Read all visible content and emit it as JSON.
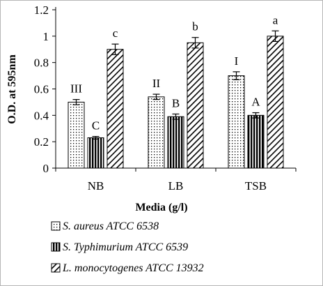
{
  "chart_data": {
    "type": "bar",
    "title": "",
    "xlabel": "Media (g/l)",
    "ylabel": "O.D. at 595nm",
    "ylim": [
      0,
      1.2
    ],
    "yticks": [
      "0",
      "0.2",
      "0.4",
      "0.6",
      "0.8",
      "1",
      "1.2"
    ],
    "categories": [
      "NB",
      "LB",
      "TSB"
    ],
    "series": [
      {
        "name": "S. aureus ATCC 6538",
        "pattern": "dots",
        "values": [
          0.5,
          0.54,
          0.7
        ],
        "errors": [
          0.02,
          0.02,
          0.03
        ],
        "labels": [
          "III",
          "II",
          "I"
        ]
      },
      {
        "name": "S. Typhimurium ATCC 6539",
        "pattern": "vertical-stripes",
        "values": [
          0.23,
          0.39,
          0.4
        ],
        "errors": [
          0.01,
          0.02,
          0.02
        ],
        "labels": [
          "C",
          "B",
          "A"
        ]
      },
      {
        "name": "L. monocytogenes ATCC 13932",
        "pattern": "diagonal-hatch",
        "values": [
          0.9,
          0.95,
          1.0
        ],
        "errors": [
          0.04,
          0.04,
          0.04
        ],
        "labels": [
          "c",
          "b",
          "a"
        ]
      }
    ],
    "grid": false,
    "legend_position": "bottom"
  },
  "colors": {
    "ink": "#000000",
    "frame": "#b5b5b5",
    "background": "#ffffff"
  }
}
